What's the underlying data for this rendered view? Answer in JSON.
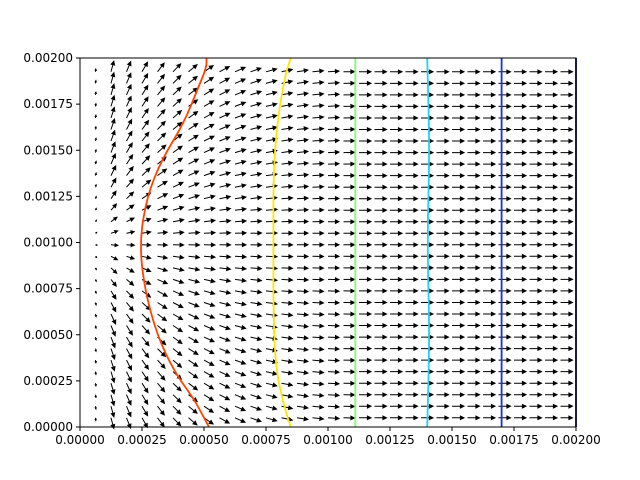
{
  "chart_data": {
    "type": "quiver+contour",
    "title": "",
    "xlabel": "",
    "ylabel": "",
    "xlim": [
      0,
      0.002
    ],
    "ylim": [
      0,
      0.002
    ],
    "grid": false,
    "x_ticks": [
      "0.00000",
      "0.00025",
      "0.00050",
      "0.00075",
      "0.00100",
      "0.00125",
      "0.00150",
      "0.00175",
      "0.00200"
    ],
    "y_ticks": [
      "0.00000",
      "0.00025",
      "0.00050",
      "0.00075",
      "0.00100",
      "0.00125",
      "0.00150",
      "0.00175",
      "0.00200"
    ],
    "quiver": {
      "grid_x_start": 6.25e-05,
      "grid_x_step": 6.25e-05,
      "grid_y_start": 5e-05,
      "grid_y_step": 6.25e-05,
      "nx": 31,
      "ny": 31,
      "color": "#000000",
      "field": "radial flow from source at (0, 0.001), uniform +x downstream"
    },
    "contours": [
      {
        "color": "#ff4500",
        "points": [
          [
            0.00052,
            0.0
          ],
          [
            0.0005,
            5e-05
          ],
          [
            0.00046,
            0.00015
          ],
          [
            0.00038,
            0.0003
          ],
          [
            0.00031,
            0.0005
          ],
          [
            0.00026,
            0.00075
          ],
          [
            0.00024,
            0.001
          ],
          [
            0.00027,
            0.00125
          ],
          [
            0.00033,
            0.00145
          ],
          [
            0.00042,
            0.00165
          ],
          [
            0.00048,
            0.00185
          ],
          [
            0.00051,
            0.00195
          ],
          [
            0.00051,
            0.002
          ]
        ]
      },
      {
        "color": "#ffe600",
        "points": [
          [
            0.00085,
            0.0
          ],
          [
            0.00083,
            8e-05
          ],
          [
            0.00079,
            0.0003
          ],
          [
            0.00078,
            0.0006
          ],
          [
            0.00078,
            0.001
          ],
          [
            0.00078,
            0.0014
          ],
          [
            0.0008,
            0.0017
          ],
          [
            0.00083,
            0.00192
          ],
          [
            0.00085,
            0.002
          ]
        ]
      },
      {
        "color": "#80ff70",
        "points": [
          [
            0.00111,
            0.0
          ],
          [
            0.00111,
            0.0005
          ],
          [
            0.00111,
            0.001
          ],
          [
            0.00111,
            0.0015
          ],
          [
            0.00111,
            0.002
          ]
        ]
      },
      {
        "color": "#1ad5f5",
        "points": [
          [
            0.0014,
            0.0
          ],
          [
            0.00141,
            0.0005
          ],
          [
            0.0014,
            0.001
          ],
          [
            0.00141,
            0.0015
          ],
          [
            0.0014,
            0.002
          ]
        ]
      },
      {
        "color": "#1a30e6",
        "points": [
          [
            0.0017,
            0.0
          ],
          [
            0.0017,
            0.0005
          ],
          [
            0.0017,
            0.001
          ],
          [
            0.0017,
            0.0015
          ],
          [
            0.0017,
            0.002
          ]
        ]
      },
      {
        "color": "#00007f",
        "points": [
          [
            0.002,
            0.0
          ],
          [
            0.002,
            0.002
          ]
        ]
      }
    ]
  }
}
